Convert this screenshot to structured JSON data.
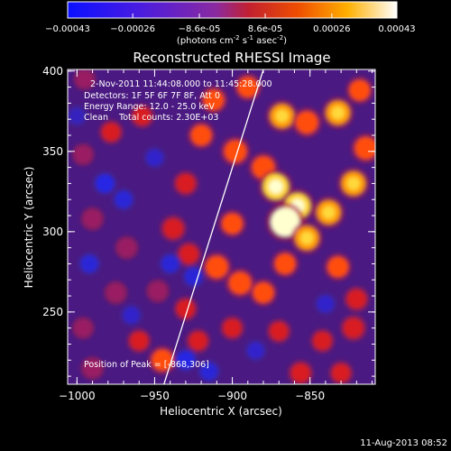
{
  "colorbar": {
    "ticks": [
      "-0.00043",
      "-0.00026",
      "-8.6e-05",
      "8.6e-05",
      "0.00026",
      "0.00043"
    ],
    "unit_label": "(photons cm",
    "unit_sup1": "-2",
    "unit_mid": " s",
    "unit_sup2": "-1",
    "unit_end": " asec",
    "unit_sup3": "-2",
    "unit_close": ")",
    "range": [
      -0.00043,
      0.00043
    ]
  },
  "chart_data": {
    "type": "heatmap",
    "title": "Reconstructed RHESSI Image",
    "xlabel": "Heliocentric X (arcsec)",
    "ylabel": "Heliocentric Y (arcsec)",
    "xlim": [
      -1006,
      -808
    ],
    "ylim": [
      205,
      401
    ],
    "x_ticks": [
      -1000,
      -950,
      -900,
      -850
    ],
    "y_ticks": [
      250,
      300,
      350,
      400
    ],
    "x_tick_labels": [
      "−1000",
      "−950",
      "−900",
      "−850"
    ],
    "y_tick_labels": [
      "250",
      "300",
      "350",
      "400"
    ],
    "annotations": [
      "2-Nov-2011 11:44:08.000 to 11:45:28.000",
      "Detectors: 1F 5F 6F 7F 8F, Att 0",
      "Energy Range: 12.0 - 25.0 keV",
      "Clean    Total counts: 2.30E+03"
    ],
    "peak_label": "Position of Peak = [-868,306]",
    "peak": [
      -868,
      306
    ],
    "limb_line": [
      [
        -944,
        205
      ],
      [
        -880,
        401
      ]
    ],
    "blobs": [
      {
        "x": -890,
        "y": 390,
        "v": 0.5
      },
      {
        "x": -868,
        "y": 372,
        "v": 0.7
      },
      {
        "x": -852,
        "y": 368,
        "v": 0.6
      },
      {
        "x": -832,
        "y": 374,
        "v": 0.7
      },
      {
        "x": -818,
        "y": 388,
        "v": 0.5
      },
      {
        "x": -898,
        "y": 350,
        "v": 0.6
      },
      {
        "x": -880,
        "y": 340,
        "v": 0.6
      },
      {
        "x": -872,
        "y": 328,
        "v": 0.8
      },
      {
        "x": -858,
        "y": 316,
        "v": 0.8
      },
      {
        "x": -866,
        "y": 306,
        "v": 1.0
      },
      {
        "x": -852,
        "y": 296,
        "v": 0.7
      },
      {
        "x": -838,
        "y": 312,
        "v": 0.7
      },
      {
        "x": -822,
        "y": 330,
        "v": 0.7
      },
      {
        "x": -814,
        "y": 352,
        "v": 0.6
      },
      {
        "x": -900,
        "y": 305,
        "v": 0.5
      },
      {
        "x": -910,
        "y": 278,
        "v": 0.6
      },
      {
        "x": -895,
        "y": 268,
        "v": 0.6
      },
      {
        "x": -880,
        "y": 262,
        "v": 0.5
      },
      {
        "x": -866,
        "y": 280,
        "v": 0.5
      },
      {
        "x": -832,
        "y": 278,
        "v": 0.5
      },
      {
        "x": -820,
        "y": 258,
        "v": 0.4
      },
      {
        "x": -912,
        "y": 382,
        "v": 0.5
      },
      {
        "x": -920,
        "y": 360,
        "v": 0.5
      },
      {
        "x": -930,
        "y": 330,
        "v": 0.4
      },
      {
        "x": -938,
        "y": 302,
        "v": 0.45
      },
      {
        "x": -928,
        "y": 286,
        "v": 0.4
      },
      {
        "x": -958,
        "y": 372,
        "v": 0.35
      },
      {
        "x": -978,
        "y": 362,
        "v": 0.35
      },
      {
        "x": -995,
        "y": 395,
        "v": 0.25
      },
      {
        "x": -996,
        "y": 348,
        "v": 0.25
      },
      {
        "x": -990,
        "y": 308,
        "v": 0.3
      },
      {
        "x": -968,
        "y": 290,
        "v": 0.3
      },
      {
        "x": -975,
        "y": 262,
        "v": 0.3
      },
      {
        "x": -948,
        "y": 263,
        "v": 0.3
      },
      {
        "x": -930,
        "y": 252,
        "v": 0.35
      },
      {
        "x": -996,
        "y": 240,
        "v": 0.25
      },
      {
        "x": -960,
        "y": 232,
        "v": 0.35
      },
      {
        "x": -945,
        "y": 220,
        "v": 0.55
      },
      {
        "x": -922,
        "y": 232,
        "v": 0.35
      },
      {
        "x": -900,
        "y": 240,
        "v": 0.35
      },
      {
        "x": -870,
        "y": 238,
        "v": 0.35
      },
      {
        "x": -842,
        "y": 232,
        "v": 0.35
      },
      {
        "x": -822,
        "y": 240,
        "v": 0.45
      },
      {
        "x": -856,
        "y": 212,
        "v": 0.4
      },
      {
        "x": -830,
        "y": 212,
        "v": 0.35
      },
      {
        "x": -990,
        "y": 215,
        "v": 0.3
      },
      {
        "x": -982,
        "y": 330,
        "v": -0.35
      },
      {
        "x": -970,
        "y": 320,
        "v": -0.3
      },
      {
        "x": -992,
        "y": 280,
        "v": -0.3
      },
      {
        "x": -950,
        "y": 346,
        "v": -0.25
      },
      {
        "x": -940,
        "y": 280,
        "v": -0.3
      },
      {
        "x": -925,
        "y": 272,
        "v": -0.3
      },
      {
        "x": -930,
        "y": 220,
        "v": -0.35
      },
      {
        "x": -915,
        "y": 213,
        "v": -0.3
      },
      {
        "x": -965,
        "y": 248,
        "v": -0.25
      },
      {
        "x": -840,
        "y": 255,
        "v": -0.25
      },
      {
        "x": -885,
        "y": 226,
        "v": -0.25
      },
      {
        "x": -1000,
        "y": 372,
        "v": -0.2
      }
    ]
  },
  "footer": {
    "timestamp": "11-Aug-2013 08:52"
  }
}
